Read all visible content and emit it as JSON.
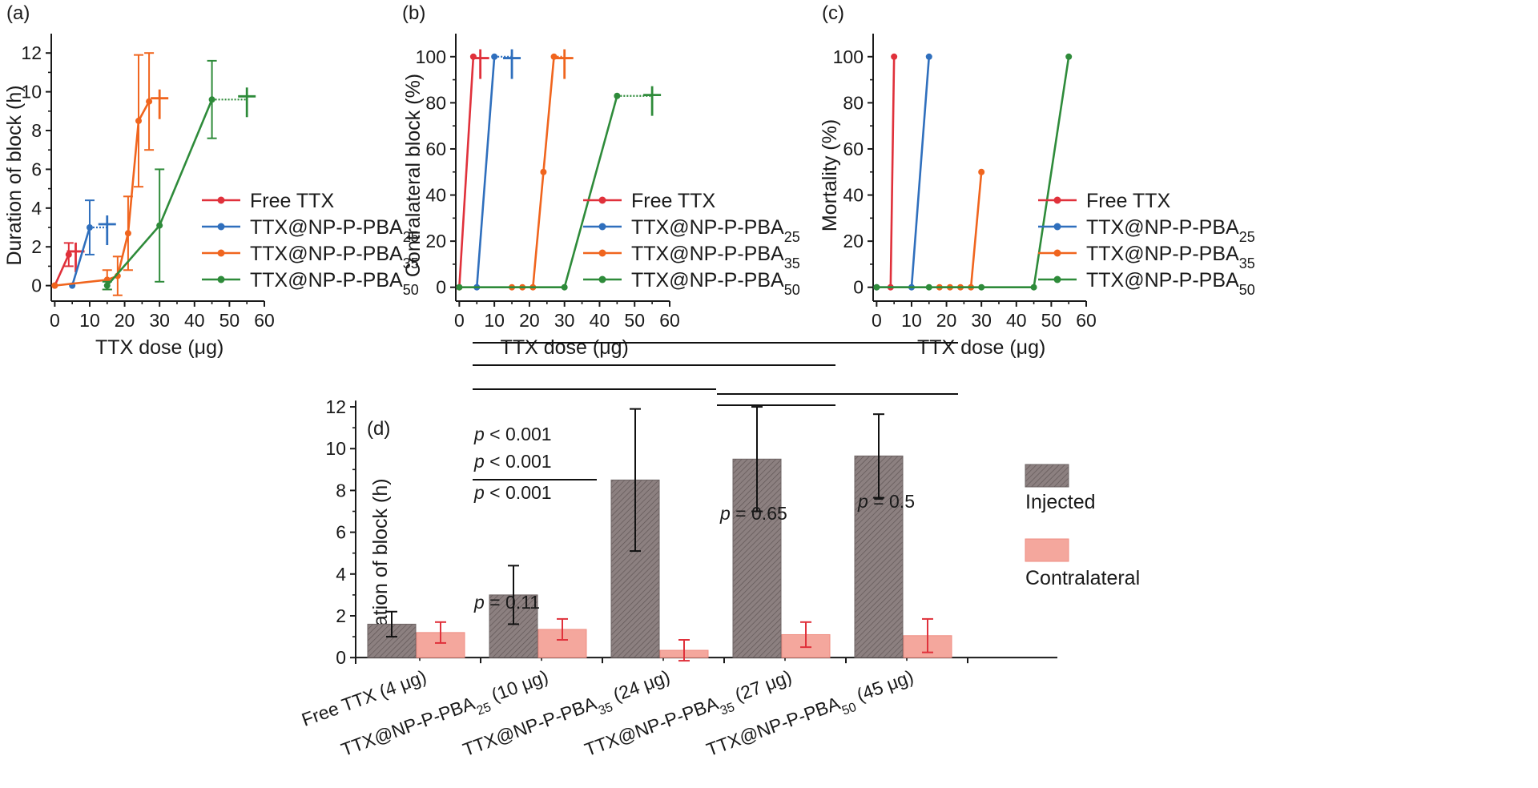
{
  "colors": {
    "free_ttx": "#e0313b",
    "pba25": "#2f6fbd",
    "pba35": "#f0651e",
    "pba50": "#2e8b3a",
    "axis": "#1a1a1a",
    "injected_fill": "#8c8080",
    "contralateral_fill": "#f4a79d",
    "contralateral_err": "#e0313b"
  },
  "chart_data": [
    {
      "id": "a",
      "label": "(a)",
      "type": "line",
      "title": "",
      "xlabel": "TTX dose (μg)",
      "ylabel": "Duration of block (h)",
      "xlim": [
        -1,
        60
      ],
      "ylim": [
        -0.8,
        13
      ],
      "xticks": [
        0,
        10,
        20,
        30,
        40,
        50,
        60
      ],
      "yticks": [
        0,
        2,
        4,
        6,
        8,
        10,
        12
      ],
      "legend": "right",
      "series": [
        {
          "name": "Free TTX",
          "color_key": "free_ttx",
          "points": [
            [
              0,
              0
            ],
            [
              4,
              1.6
            ]
          ],
          "errors": [
            0,
            0.6
          ],
          "dagger": {
            "x": 6,
            "y": 1.6
          },
          "dagger_link": false
        },
        {
          "name": "TTX@NP-P-PBA25",
          "color_key": "pba25",
          "points": [
            [
              5,
              0
            ],
            [
              10,
              3
            ]
          ],
          "errors": [
            0,
            1.4
          ],
          "dagger": {
            "x": 15,
            "y": 3
          },
          "dagger_link": true
        },
        {
          "name": "TTX@NP-P-PBA35",
          "color_key": "pba35",
          "points": [
            [
              0,
              0
            ],
            [
              15,
              0.3
            ],
            [
              18,
              0.5
            ],
            [
              21,
              2.7
            ],
            [
              24,
              8.5
            ],
            [
              27,
              9.5
            ]
          ],
          "errors": [
            0,
            0.5,
            1.0,
            1.9,
            3.4,
            2.5
          ],
          "dagger": {
            "x": 30,
            "y": 9.5
          },
          "dagger_link": false
        },
        {
          "name": "TTX@NP-P-PBA50",
          "color_key": "pba50",
          "points": [
            [
              15,
              0
            ],
            [
              30,
              3.1
            ],
            [
              45,
              9.6
            ]
          ],
          "errors": [
            0.2,
            2.9,
            2.0
          ],
          "dagger": {
            "x": 55,
            "y": 9.6
          },
          "dagger_link": true
        }
      ]
    },
    {
      "id": "b",
      "label": "(b)",
      "type": "line",
      "title": "",
      "xlabel": "TTX dose (μg)",
      "ylabel": "Contralateral block (%)",
      "xlim": [
        -1,
        60
      ],
      "ylim": [
        -6,
        110
      ],
      "xticks": [
        0,
        10,
        20,
        30,
        40,
        50,
        60
      ],
      "yticks": [
        0,
        20,
        40,
        60,
        80,
        100
      ],
      "legend": "right",
      "series": [
        {
          "name": "Free TTX",
          "color_key": "free_ttx",
          "points": [
            [
              0,
              0
            ],
            [
              4,
              100
            ]
          ],
          "errors": [],
          "dagger": {
            "x": 6,
            "y": 98
          },
          "dagger_link": false
        },
        {
          "name": "TTX@NP-P-PBA25",
          "color_key": "pba25",
          "points": [
            [
              5,
              0
            ],
            [
              10,
              100
            ]
          ],
          "errors": [],
          "dagger": {
            "x": 15,
            "y": 98
          },
          "dagger_link": true
        },
        {
          "name": "TTX@NP-P-PBA35",
          "color_key": "pba35",
          "points": [
            [
              15,
              0
            ],
            [
              18,
              0
            ],
            [
              21,
              0
            ],
            [
              24,
              50
            ],
            [
              27,
              100
            ]
          ],
          "errors": [],
          "dagger": {
            "x": 30,
            "y": 98
          },
          "dagger_link": true
        },
        {
          "name": "TTX@NP-P-PBA50",
          "color_key": "pba50",
          "points": [
            [
              0,
              0
            ],
            [
              30,
              0
            ],
            [
              45,
              83
            ]
          ],
          "errors": [],
          "dagger": {
            "x": 55,
            "y": 82
          },
          "dagger_link": true
        }
      ]
    },
    {
      "id": "c",
      "label": "(c)",
      "type": "line",
      "title": "",
      "xlabel": "TTX dose (μg)",
      "ylabel": "Mortality (%)",
      "xlim": [
        -1,
        60
      ],
      "ylim": [
        -6,
        110
      ],
      "xticks": [
        0,
        10,
        20,
        30,
        40,
        50,
        60
      ],
      "yticks": [
        0,
        20,
        40,
        60,
        80,
        100
      ],
      "legend": "right",
      "series": [
        {
          "name": "Free TTX",
          "color_key": "free_ttx",
          "points": [
            [
              4,
              0
            ],
            [
              5,
              100
            ]
          ],
          "errors": []
        },
        {
          "name": "TTX@NP-P-PBA25",
          "color_key": "pba25",
          "points": [
            [
              0,
              0
            ],
            [
              10,
              0
            ],
            [
              15,
              100
            ]
          ],
          "errors": []
        },
        {
          "name": "TTX@NP-P-PBA35",
          "color_key": "pba35",
          "points": [
            [
              18,
              0
            ],
            [
              21,
              0
            ],
            [
              24,
              0
            ],
            [
              27,
              0
            ],
            [
              30,
              50
            ]
          ],
          "errors": []
        },
        {
          "name": "TTX@NP-P-PBA50",
          "color_key": "pba50",
          "points": [
            [
              0,
              0
            ],
            [
              15,
              0
            ],
            [
              30,
              0
            ],
            [
              45,
              0
            ],
            [
              55,
              100
            ]
          ],
          "errors": []
        }
      ]
    },
    {
      "id": "d",
      "label": "(d)",
      "type": "bar",
      "title": "",
      "xlabel": "",
      "ylabel": "Duration of block (h)",
      "ylim": [
        -0.3,
        12.5
      ],
      "yticks": [
        0,
        2,
        4,
        6,
        8,
        10,
        12
      ],
      "legend": "right",
      "categories": [
        {
          "pre": "Free TTX (4 μg)",
          "sub": "",
          "post": ""
        },
        {
          "pre": "TTX@NP-P-PBA",
          "sub": "25",
          "post": " (10 μg)"
        },
        {
          "pre": "TTX@NP-P-PBA",
          "sub": "35",
          "post": " (24 μg)"
        },
        {
          "pre": "TTX@NP-P-PBA",
          "sub": "35",
          "post": " (27 μg)"
        },
        {
          "pre": "TTX@NP-P-PBA",
          "sub": "50",
          "post": " (45 μg)"
        }
      ],
      "series": [
        {
          "name": "Injected",
          "values": [
            1.6,
            3.0,
            8.5,
            9.5,
            9.65
          ],
          "errors": [
            0.6,
            1.4,
            3.4,
            2.5,
            2.0
          ]
        },
        {
          "name": "Contralateral",
          "values": [
            1.2,
            1.35,
            0.35,
            1.1,
            1.05
          ],
          "errors": [
            0.5,
            0.5,
            0.5,
            0.6,
            0.8
          ]
        }
      ],
      "comparisons": [
        {
          "from": 0,
          "to": 1,
          "text_it": "p",
          "text": " = 0.11",
          "level": 0
        },
        {
          "from": 2,
          "to": 3,
          "text_it": "p",
          "text": " = 0.65",
          "level": 1
        },
        {
          "from": 2,
          "to": 4,
          "text_it": "p",
          "text": " = 0.5",
          "level": 2
        },
        {
          "from": 0,
          "to": 2,
          "text_it": "p",
          "text": " < 0.001",
          "level": 3
        },
        {
          "from": 0,
          "to": 3,
          "text_it": "p",
          "text": " < 0.001",
          "level": 4
        },
        {
          "from": 0,
          "to": 4,
          "text_it": "p",
          "text": " < 0.001",
          "level": 5
        }
      ]
    }
  ]
}
